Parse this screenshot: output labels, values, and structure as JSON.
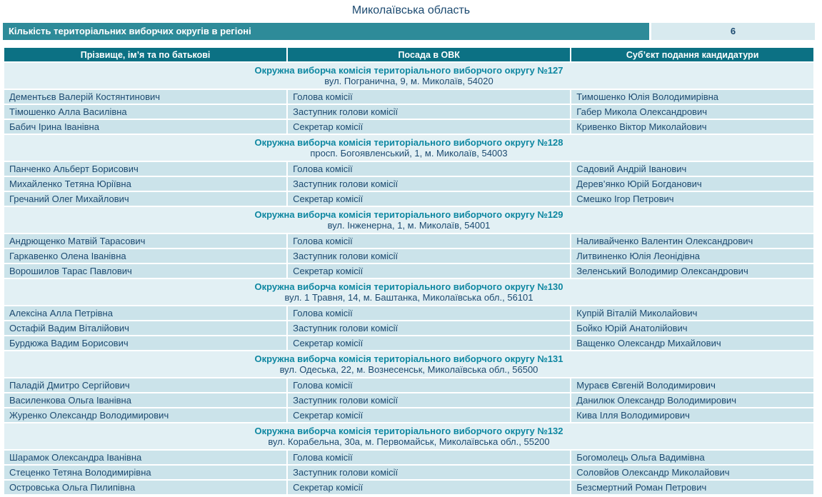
{
  "page": {
    "title": "Миколаївська область",
    "region_count": {
      "label": "Кількість територіальних виборчих округів в регіоні",
      "value": "6"
    }
  },
  "table": {
    "columns": [
      "Прізвище, ім’я та по батькові",
      "Посада в ОВК",
      "Суб’єкт подання кандидатури"
    ],
    "groups": [
      {
        "commission": "Окружна виборча комісія територіального виборчого округу №127",
        "address": "вул. Погранична, 9, м. Миколаїв, 54020",
        "rows": [
          {
            "name": "Дементьєв Валерій Костянтинович",
            "position": "Голова комісії",
            "submitter": "Тимошенко Юлія Володимирівна"
          },
          {
            "name": "Тімошенко Алла Василівна",
            "position": "Заступник голови комісії",
            "submitter": "Габер Микола Олександрович"
          },
          {
            "name": "Бабич Ірина Іванівна",
            "position": "Секретар комісії",
            "submitter": "Кривенко Віктор Миколайович"
          }
        ]
      },
      {
        "commission": "Окружна виборча комісія територіального виборчого округу №128",
        "address": "просп. Богоявленський, 1, м. Миколаїв, 54003",
        "rows": [
          {
            "name": "Панченко Альберт Борисович",
            "position": "Голова комісії",
            "submitter": "Садовий Андрій Іванович"
          },
          {
            "name": "Михайленко Тетяна Юріївна",
            "position": "Заступник голови комісії",
            "submitter": "Дерев’янко Юрій Богданович"
          },
          {
            "name": "Гречаний Олег Михайлович",
            "position": "Секретар комісії",
            "submitter": "Смешко Ігор Петрович"
          }
        ]
      },
      {
        "commission": "Окружна виборча комісія територіального виборчого округу №129",
        "address": "вул. Інженерна, 1, м. Миколаїв, 54001",
        "rows": [
          {
            "name": "Андрющенко Матвій Тарасович",
            "position": "Голова комісії",
            "submitter": "Наливайченко Валентин Олександрович"
          },
          {
            "name": "Гаркавенко Олена Іванівна",
            "position": "Заступник голови комісії",
            "submitter": "Литвиненко Юлія Леонідівна"
          },
          {
            "name": "Ворошилов Тарас Павлович",
            "position": "Секретар комісії",
            "submitter": "Зеленський Володимир Олександрович"
          }
        ]
      },
      {
        "commission": "Окружна виборча комісія територіального виборчого округу №130",
        "address": "вул. 1 Травня, 14, м. Баштанка, Миколаївська обл., 56101",
        "rows": [
          {
            "name": "Алексіна Алла Петрівна",
            "position": "Голова комісії",
            "submitter": "Купрій Віталій Миколайович"
          },
          {
            "name": "Остафій Вадим Віталійович",
            "position": "Заступник голови комісії",
            "submitter": "Бойко Юрій Анатолійович"
          },
          {
            "name": "Бурдюжа Вадим Борисович",
            "position": "Секретар комісії",
            "submitter": "Ващенко Олександр Михайлович"
          }
        ]
      },
      {
        "commission": "Окружна виборча комісія територіального виборчого округу №131",
        "address": "вул. Одеська, 22, м. Вознесенськ, Миколаївська обл., 56500",
        "rows": [
          {
            "name": "Паладій Дмитро Сергійович",
            "position": "Голова комісії",
            "submitter": "Мураєв Євгеній Володимирович"
          },
          {
            "name": "Василенкова Ольга Іванівна",
            "position": "Заступник голови комісії",
            "submitter": "Данилюк Олександр Володимирович"
          },
          {
            "name": "Журенко Олександр Володимирович",
            "position": "Секретар комісії",
            "submitter": "Кива Ілля Володимирович"
          }
        ]
      },
      {
        "commission": "Окружна виборча комісія територіального виборчого округу №132",
        "address": "вул. Корабельна, 30а, м. Первомайськ, Миколаївська обл., 55200",
        "rows": [
          {
            "name": "Шарамок Олександра Іванівна",
            "position": "Голова комісії",
            "submitter": "Богомолець Ольга Вадимівна"
          },
          {
            "name": "Стеценко Тетяна Володимирівна",
            "position": "Заступник голови комісії",
            "submitter": "Соловйов Олександр Миколайович"
          },
          {
            "name": "Островська Ольга Пилипівна",
            "position": "Секретар комісії",
            "submitter": "Безсмертний Роман Петрович"
          }
        ]
      }
    ]
  },
  "colors": {
    "count_bar_teal": "#2e8b99",
    "table_header_teal": "#0c7184",
    "row_background": "#cbe3ea",
    "group_header_background": "#e2f0f4",
    "count_value_background": "#d8eaef",
    "navy_text": "#1c4a70",
    "teal_text": "#0e87a1"
  }
}
